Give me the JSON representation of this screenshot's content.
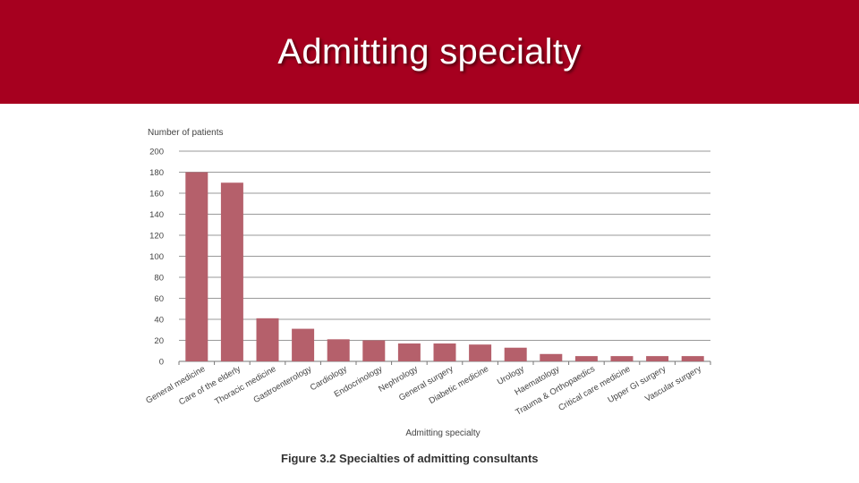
{
  "slide": {
    "title": "Admitting specialty",
    "caption": "Figure 3.2 Specialties of admitting consultants"
  },
  "colors": {
    "banner": "#a6001f",
    "bar": "#b5606b",
    "grid": "#9a9a9a",
    "text": "#444444"
  },
  "chart_data": {
    "type": "bar",
    "title": "",
    "xlabel": "Admitting specialty",
    "ylabel": "Number of patients",
    "ylim": [
      0,
      200
    ],
    "yticks": [
      0,
      20,
      40,
      60,
      80,
      100,
      120,
      140,
      160,
      180,
      200
    ],
    "grid": true,
    "categories": [
      "General medicine",
      "Care of the elderly",
      "Thoracic medicine",
      "Gastroenterology",
      "Cardiology",
      "Endocrinology",
      "Nephrology",
      "General surgery",
      "Diabetic medicine",
      "Urology",
      "Haematology",
      "Trauma & Orthopaedics",
      "Critical care medicine",
      "Upper GI surgery",
      "Vascular surgery"
    ],
    "values": [
      180,
      170,
      41,
      31,
      21,
      20,
      17,
      17,
      16,
      13,
      7,
      5,
      5,
      5,
      5
    ]
  }
}
